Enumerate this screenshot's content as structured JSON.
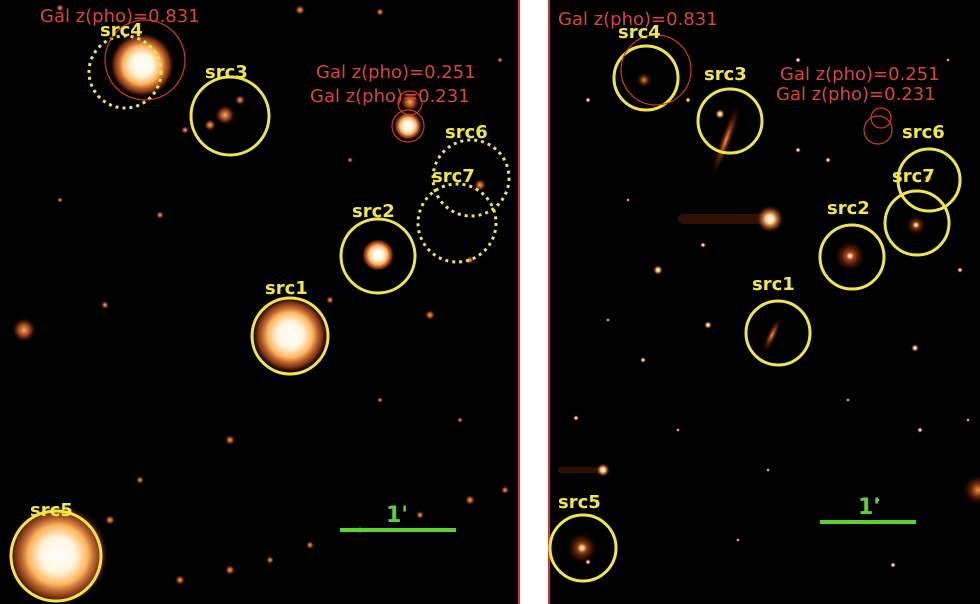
{
  "colors": {
    "background": "#000000",
    "source_circle": "#f0e646",
    "redshift_circle": "#d8342a",
    "redshift_text": "#e0423a",
    "scalebar": "#5cd130",
    "scale_text": "#5cd130"
  },
  "left_panel": {
    "source_labels": {
      "src1": "src1",
      "src2": "src2",
      "src3": "src3",
      "src4": "src4",
      "src5": "src5",
      "src6": "src6",
      "src7": "src7"
    },
    "redshift_labels": {
      "z1": "Gal z(pho)=0.831",
      "z2": "Gal z(pho)=0.251",
      "z3": "Gal z(pho)=0.231"
    },
    "scale_label": "1'"
  },
  "right_panel": {
    "source_labels": {
      "src1": "src1",
      "src2": "src2",
      "src3": "src3",
      "src4": "src4",
      "src5": "src5",
      "src6": "src6",
      "src7": "src7"
    },
    "redshift_labels": {
      "z1": "Gal z(pho)=0.831",
      "z2": "Gal z(pho)=0.251",
      "z3": "Gal z(pho)=0.231"
    },
    "scale_label": "1'"
  }
}
